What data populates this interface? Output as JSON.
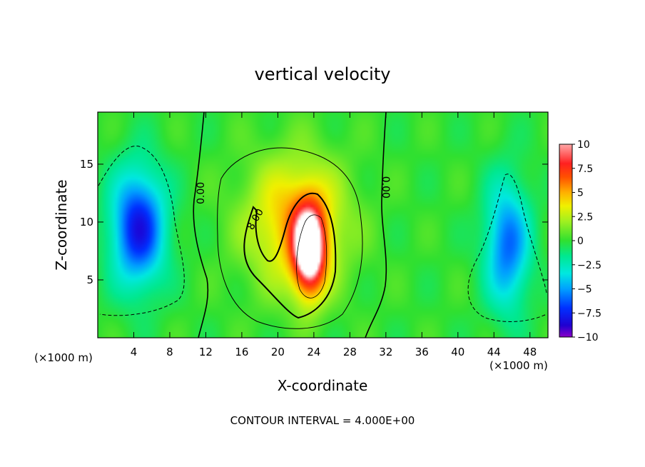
{
  "chart_data": {
    "type": "heatmap",
    "title": "vertical velocity",
    "xlabel": "X-coordinate",
    "ylabel": "Z-coordinate",
    "x_unit": "(×1000 m)",
    "footer": "CONTOUR INTERVAL = 4.000E+00",
    "xlim": [
      0,
      50
    ],
    "ylim": [
      0,
      19.5
    ],
    "x_ticks": [
      4,
      8,
      12,
      16,
      20,
      24,
      28,
      32,
      36,
      40,
      44,
      48
    ],
    "y_ticks": [
      5,
      10,
      15
    ],
    "colorbar": {
      "range": [
        -10,
        10
      ],
      "tick_values": [
        10,
        7.5,
        5,
        2.5,
        0,
        -2.5,
        -5,
        -7.5,
        -10
      ],
      "tick_labels": [
        "10",
        "7.5",
        "5",
        "2.5",
        "0",
        "−2.5",
        "−5",
        "−7.5",
        "−10"
      ]
    },
    "contour_labels": [
      {
        "text": "0.00",
        "x": 11.8,
        "y": 12.5,
        "rotation": -90
      },
      {
        "text": "8.00",
        "x": 17.8,
        "y": 10.1,
        "rotation": -60
      },
      {
        "text": "0.00",
        "x": 31.6,
        "y": 13.0,
        "rotation": 90
      }
    ],
    "features": [
      {
        "name": "updraft-core",
        "x": 23.5,
        "y": 7.5,
        "sx": 1.8,
        "sy": 3.8,
        "amp": 11
      },
      {
        "name": "updraft-halo",
        "x": 22.0,
        "y": 10.0,
        "sx": 5.5,
        "sy": 5.5,
        "amp": 5
      },
      {
        "name": "left-downdraft",
        "x": 4.5,
        "y": 9.5,
        "sx": 3.0,
        "sy": 5.0,
        "amp": -8
      },
      {
        "name": "right-downdraft",
        "x": 45.5,
        "y": 8.0,
        "sx": 2.5,
        "sy": 5.5,
        "amp": -6
      }
    ]
  }
}
